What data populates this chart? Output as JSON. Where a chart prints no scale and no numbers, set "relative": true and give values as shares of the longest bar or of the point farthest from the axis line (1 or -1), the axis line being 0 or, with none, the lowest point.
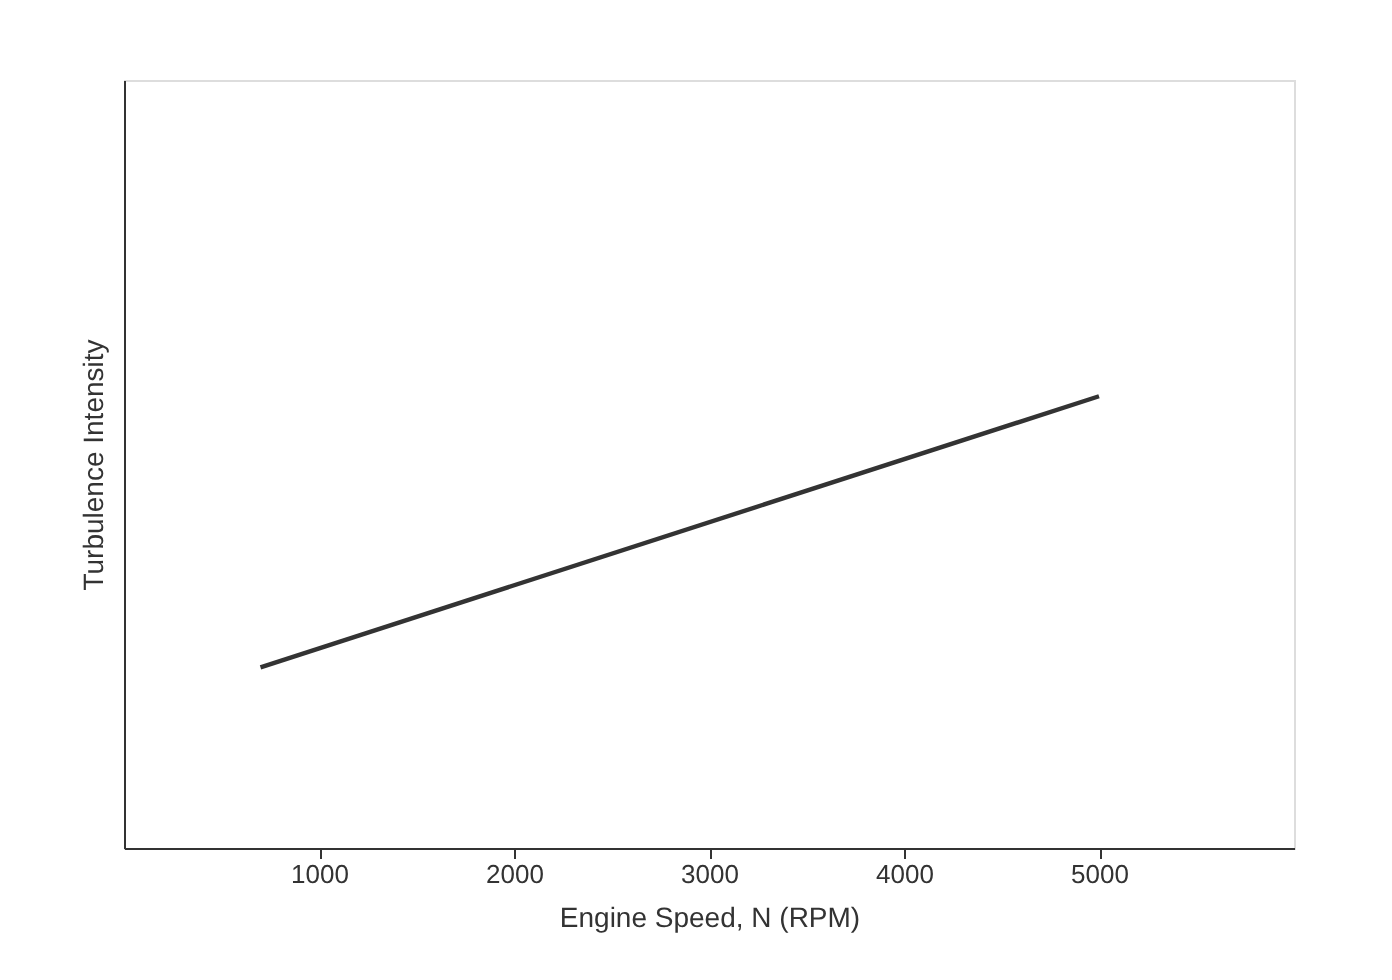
{
  "chart_data": {
    "type": "line",
    "xlabel": "Engine Speed, N (RPM)",
    "ylabel": "Turbulence Intensity",
    "relative": true,
    "x": [
      700,
      5000
    ],
    "series": [
      {
        "color": "#333333",
        "values": [
          0.4,
          1
        ]
      }
    ],
    "xlim": [
      0,
      6000
    ],
    "xticks": [
      1000,
      2000,
      3000,
      4000,
      5000
    ],
    "grid": false,
    "legend": false,
    "marker": "none",
    "line_style": "solid"
  }
}
